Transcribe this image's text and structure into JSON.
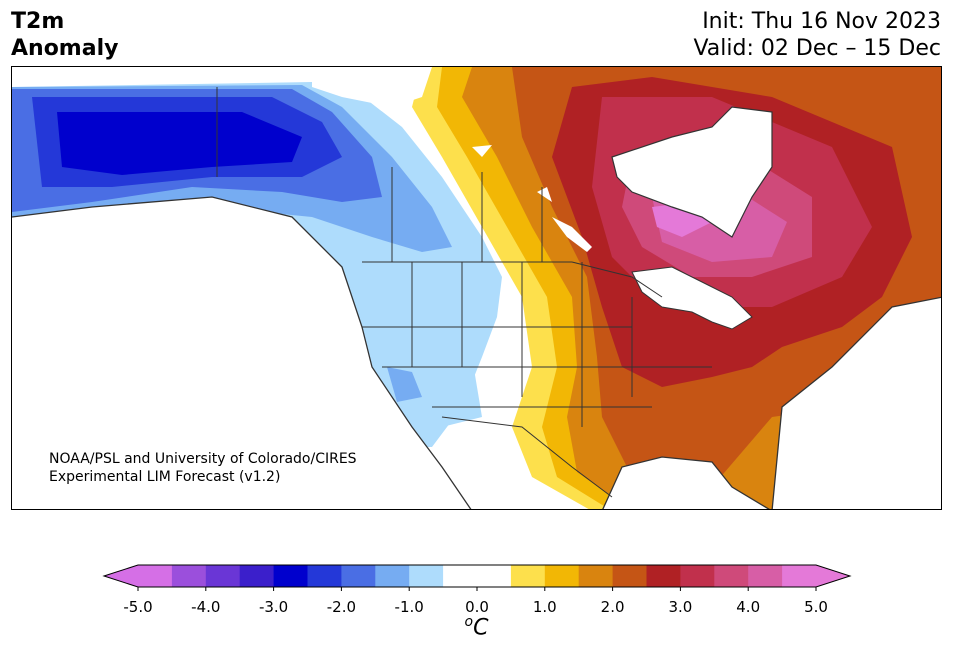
{
  "title": {
    "left_line1": "T2m",
    "left_line2": "Anomaly",
    "init": "Init: Thu 16 Nov 2023",
    "valid": "Valid: 02 Dec – 15 Dec"
  },
  "credit": {
    "line1": "NOAA/PSL and University of Colorado/CIRES",
    "line2": "Experimental LIM Forecast (v1.2)"
  },
  "colorbar": {
    "unit_base": "C",
    "unit_sup": "o",
    "ticks": [
      "-5.0",
      "-4.0",
      "-3.0",
      "-2.0",
      "-1.0",
      "0.0",
      "1.0",
      "2.0",
      "3.0",
      "4.0",
      "5.0"
    ],
    "colors": [
      "#d56fe6",
      "#9b4fdc",
      "#6a36d6",
      "#3b1fcb",
      "#0000cd",
      "#2438d8",
      "#4a6ee4",
      "#76acf2",
      "#aedcfc",
      "#ffffff",
      "#ffffff",
      "#fde04c",
      "#f2b705",
      "#d9840f",
      "#c55515",
      "#b02124",
      "#c1304c",
      "#cf4a7a",
      "#d75ea6",
      "#e479d8"
    ]
  },
  "map": {
    "projection": "Lambert conformal, North America",
    "fields": [
      {
        "region": "Alaska",
        "anomaly_c": "-2.5 to -3.5"
      },
      {
        "region": "Western Canada",
        "anomaly_c": "-1.0 to -2.0"
      },
      {
        "region": "Western US",
        "anomaly_c": "-0.5 to -1.0"
      },
      {
        "region": "Hudson Bay / Quebec",
        "anomaly_c": "3.5 to 4.5"
      },
      {
        "region": "Great Lakes / Northeast US",
        "anomaly_c": "2.5 to 3.5"
      },
      {
        "region": "Southeast US / Texas",
        "anomaly_c": "1.0 to 2.5"
      }
    ]
  }
}
